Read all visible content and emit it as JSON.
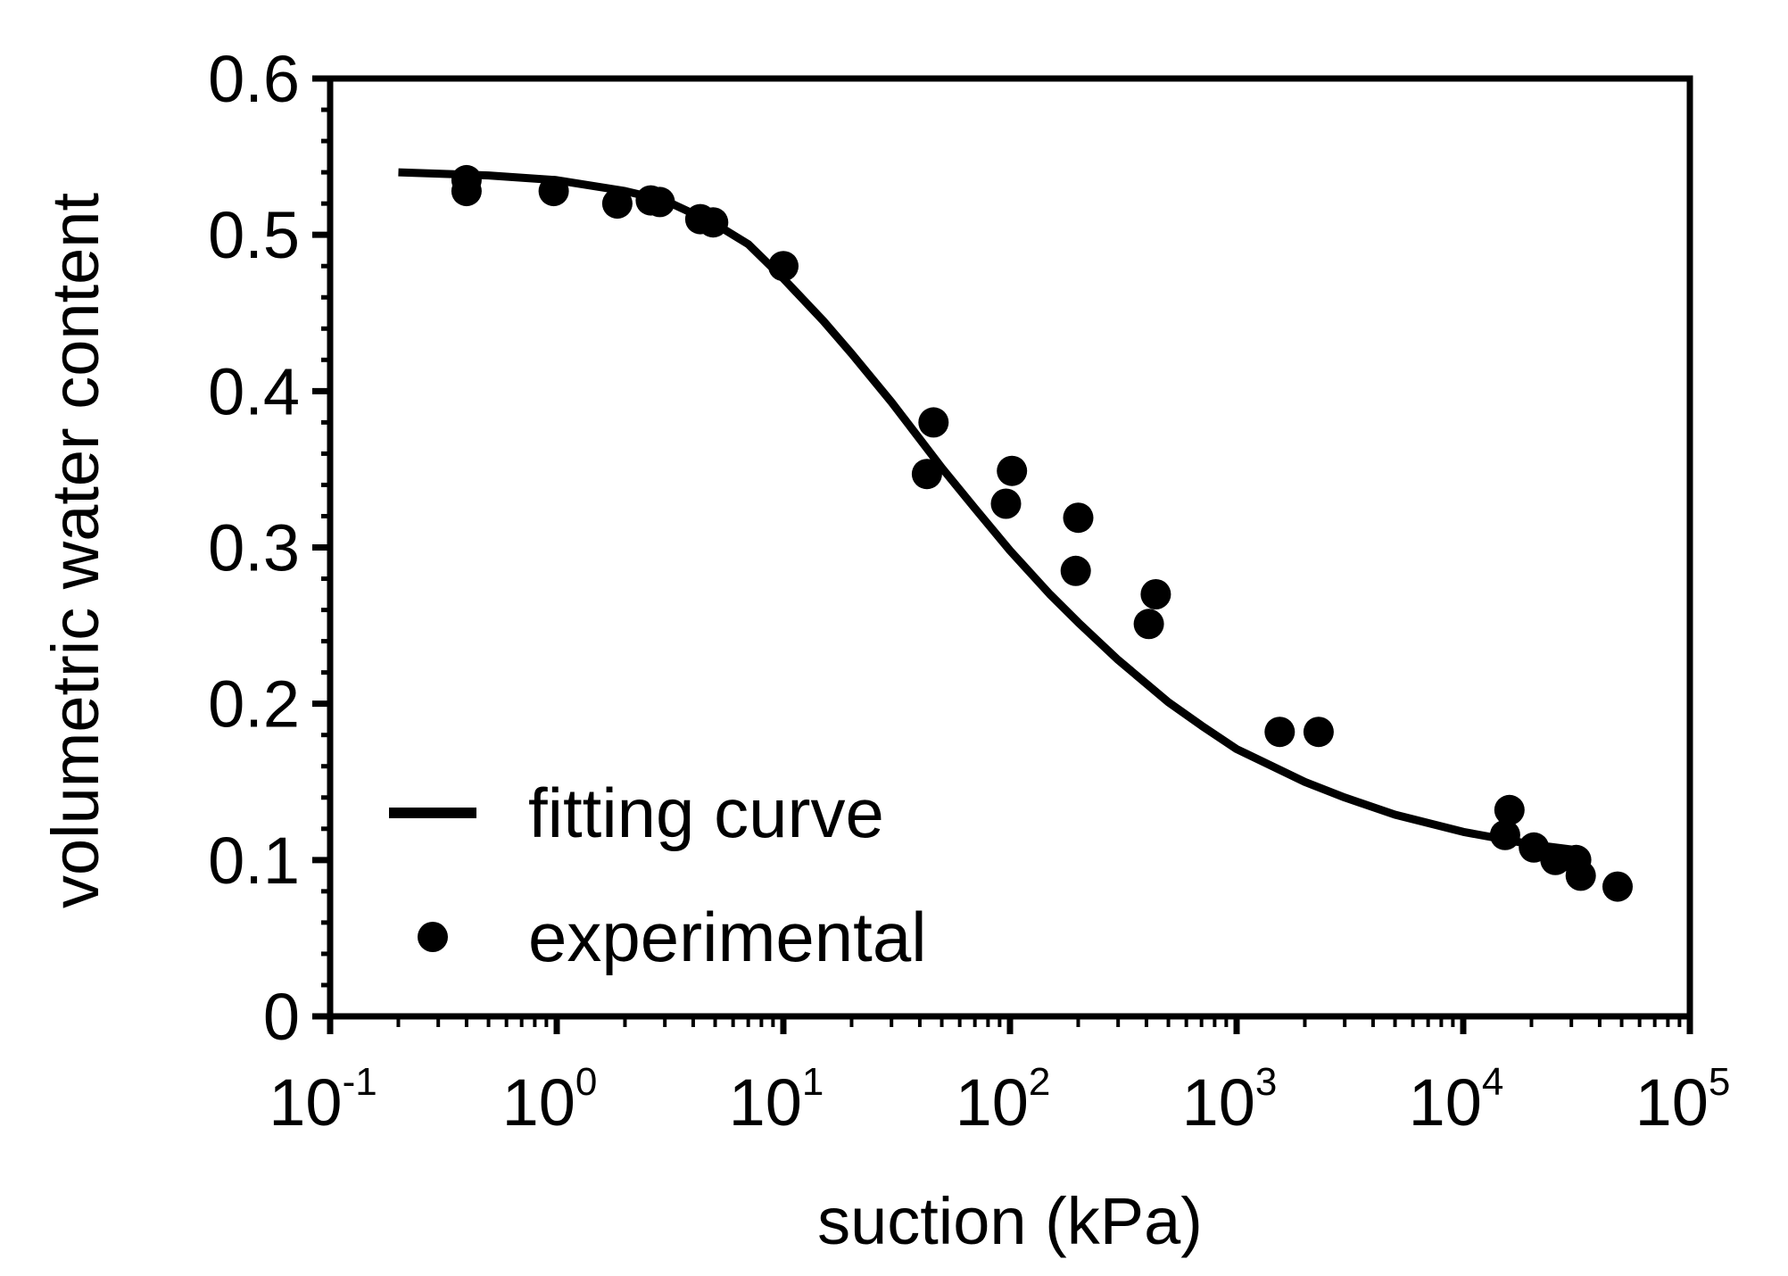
{
  "chart_data": {
    "type": "scatter",
    "title": "",
    "xlabel": "suction (kPa)",
    "ylabel": "volumetric water content",
    "xscale": "log",
    "xlim": [
      0.1,
      100000
    ],
    "ylim": [
      0,
      0.6
    ],
    "grid": false,
    "legend_position": "bottom-left",
    "x_ticks": [
      {
        "base": "10",
        "exp": "-1",
        "value": 0.1
      },
      {
        "base": "10",
        "exp": "0",
        "value": 1
      },
      {
        "base": "10",
        "exp": "1",
        "value": 10
      },
      {
        "base": "10",
        "exp": "2",
        "value": 100
      },
      {
        "base": "10",
        "exp": "3",
        "value": 1000
      },
      {
        "base": "10",
        "exp": "4",
        "value": 10000
      },
      {
        "base": "10",
        "exp": "5",
        "value": 100000
      }
    ],
    "y_ticks": [
      {
        "label": "0",
        "value": 0
      },
      {
        "label": "0.1",
        "value": 0.1
      },
      {
        "label": "0.2",
        "value": 0.2
      },
      {
        "label": "0.3",
        "value": 0.3
      },
      {
        "label": "0.4",
        "value": 0.4
      },
      {
        "label": "0.5",
        "value": 0.5
      },
      {
        "label": "0.6",
        "value": 0.6
      }
    ],
    "series": [
      {
        "name": "fitting curve",
        "type": "line",
        "color": "#000000",
        "x": [
          0.2,
          0.5,
          1,
          2,
          3,
          5,
          7,
          10,
          15,
          20,
          30,
          50,
          70,
          100,
          150,
          200,
          300,
          500,
          700,
          1000,
          2000,
          3000,
          5000,
          10000,
          20000,
          33000
        ],
        "y": [
          0.54,
          0.538,
          0.535,
          0.528,
          0.522,
          0.507,
          0.494,
          0.472,
          0.445,
          0.424,
          0.393,
          0.351,
          0.325,
          0.298,
          0.27,
          0.252,
          0.228,
          0.201,
          0.186,
          0.171,
          0.15,
          0.14,
          0.129,
          0.118,
          0.11,
          0.106
        ]
      },
      {
        "name": "experimental",
        "type": "scatter",
        "color": "#000000",
        "x": [
          0.4,
          0.4,
          0.97,
          1.85,
          2.6,
          2.85,
          4.3,
          4.9,
          10,
          43,
          46,
          96,
          102,
          195,
          200,
          410,
          440,
          1550,
          2300,
          15300,
          16000,
          20500,
          25500,
          31500,
          33000,
          48000
        ],
        "y": [
          0.535,
          0.528,
          0.528,
          0.52,
          0.522,
          0.521,
          0.51,
          0.508,
          0.48,
          0.347,
          0.38,
          0.328,
          0.349,
          0.285,
          0.319,
          0.251,
          0.27,
          0.182,
          0.182,
          0.116,
          0.132,
          0.108,
          0.1,
          0.1,
          0.09,
          0.083
        ]
      }
    ]
  }
}
